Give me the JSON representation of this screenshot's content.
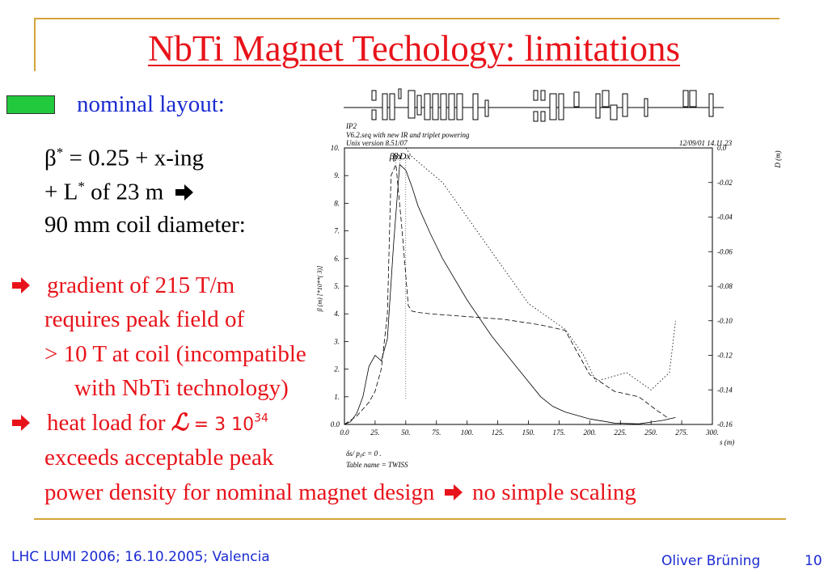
{
  "slide": {
    "title": "NbTi Magnet Techology: limitations",
    "legend_label": "nominal layout:",
    "params": {
      "beta_symbol": "β",
      "beta_sup": "*",
      "beta_rest": " = 0.25 + x-ing",
      "l_prefix": "+ L",
      "l_sup": "*",
      "l_rest": " of 23 m",
      "coil": "90 mm coil diameter:"
    },
    "points": [
      {
        "arrow_icon": "arrow-right-icon",
        "lines": [
          "gradient of 215 T/m",
          "requires peak field of",
          "> 10 T at coil (incompatible",
          "with NbTi technology)"
        ]
      },
      {
        "arrow_icon": "arrow-right-icon",
        "lead": "heat load for ",
        "lumi_symbol": "ℒ",
        "formula": " = 3 10",
        "formula_sup": "34",
        "lines": [
          "exceeds acceptable peak",
          "power density for nominal magnet design"
        ],
        "tail": " no simple scaling"
      }
    ],
    "footer": {
      "left": "LHC LUMI 2006; 16.10.2005; Valencia",
      "author": "Oliver Brüning",
      "page": "10"
    },
    "colors": {
      "accent_red": "#e8131a",
      "blue": "#1a2bd1",
      "gold_rule": "#d4a53c",
      "legend_green": "#22c93d"
    }
  },
  "chart_data": {
    "type": "line",
    "header": [
      "IP2",
      "V6.2.seq with new IR and triplet powering",
      "Unix version 8.51/07"
    ],
    "timestamp": "12/09/01  14.11.23",
    "xlabel": "s (m)",
    "ylabel_left": "β (m)   [*10**( 3)]",
    "ylabel_right": "D (m)",
    "xlim": [
      0,
      300
    ],
    "ylim_left": [
      0,
      10
    ],
    "ylim_right": [
      -0.16,
      0
    ],
    "x_ticks": [
      "0.0",
      "25.",
      "50.",
      "75.",
      "100.",
      "125.",
      "150.",
      "175.",
      "200.",
      "225.",
      "250.",
      "275.",
      "300."
    ],
    "y_ticks_left": [
      "0.0",
      "1.",
      "2.",
      "3.",
      "4.",
      "5.",
      "6.",
      "7.",
      "8.",
      "9.",
      "10."
    ],
    "y_ticks_right": [
      "0.0",
      "-0.02",
      "-0.04",
      "-0.06",
      "-0.08",
      "-0.10",
      "-0.12",
      "-0.14",
      "-0.16"
    ],
    "series": [
      {
        "name": "βx",
        "style": "solid",
        "axis": "left",
        "x": [
          0,
          5,
          10,
          15,
          20,
          25,
          30,
          35,
          40,
          45,
          50,
          55,
          60,
          70,
          80,
          100,
          120,
          140,
          160,
          170,
          180,
          200,
          220,
          240,
          260,
          270
        ],
        "y": [
          0.0,
          0.1,
          0.4,
          1.0,
          2.1,
          2.5,
          2.3,
          3.1,
          6.5,
          9.4,
          9.2,
          8.6,
          7.9,
          6.9,
          6.0,
          4.5,
          3.2,
          2.1,
          1.0,
          0.65,
          0.45,
          0.2,
          0.05,
          0.02,
          0.15,
          0.25
        ]
      },
      {
        "name": "βy",
        "style": "dashed",
        "axis": "left",
        "x": [
          0,
          10,
          20,
          25,
          30,
          35,
          38,
          42,
          47,
          52,
          55,
          60,
          70,
          100,
          130,
          160,
          180,
          190,
          200,
          220,
          240,
          255,
          265
        ],
        "y": [
          0.0,
          0.3,
          0.8,
          1.2,
          2.0,
          4.0,
          9.0,
          9.4,
          7.0,
          4.3,
          4.1,
          4.05,
          4.0,
          3.9,
          3.8,
          3.6,
          3.4,
          2.6,
          1.8,
          1.2,
          1.0,
          0.5,
          0.2
        ]
      },
      {
        "name": "Dx",
        "style": "dotted",
        "axis": "right",
        "x": [
          0,
          50,
          55,
          80,
          120,
          150,
          170,
          180,
          195,
          205,
          230,
          250,
          265,
          270
        ],
        "y": [
          0.0,
          0.0,
          -0.005,
          -0.02,
          -0.06,
          -0.09,
          -0.1,
          -0.105,
          -0.12,
          -0.135,
          -0.13,
          -0.14,
          -0.13,
          -0.1
        ]
      }
    ],
    "footnote_1": "δs/ p₀c  =  0 .",
    "footnote_2": "Table name = TWISS"
  }
}
